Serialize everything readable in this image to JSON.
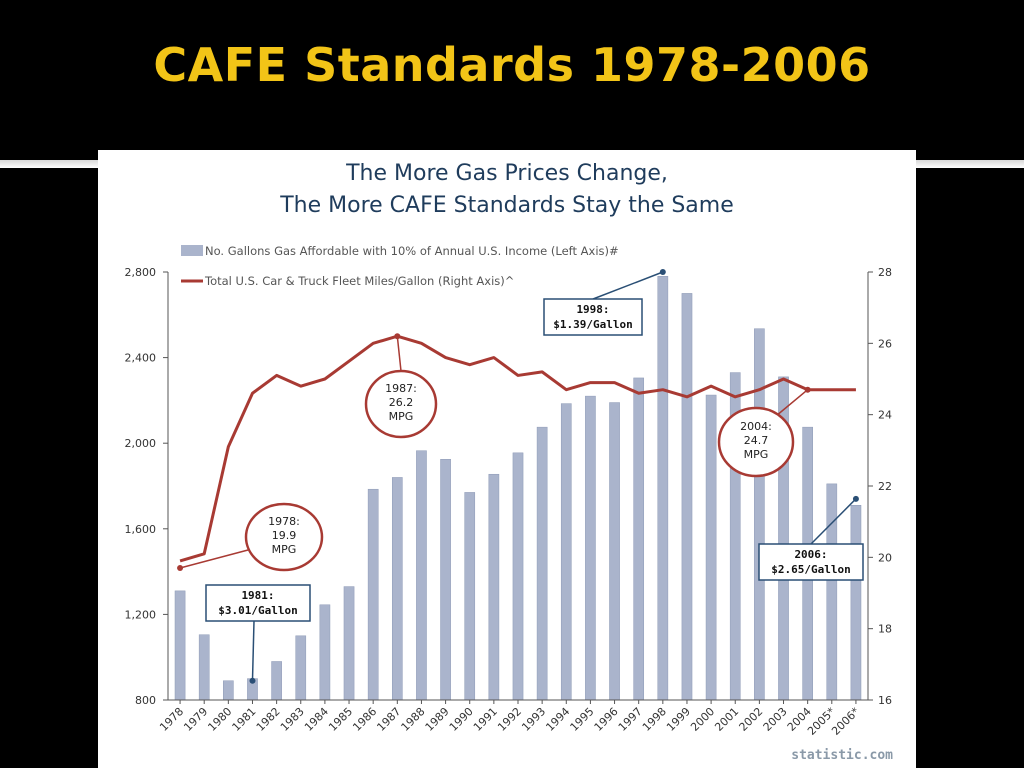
{
  "slide": {
    "title": "CAFE Standards 1978-2006"
  },
  "chart_data": {
    "type": "bar",
    "title_lines": [
      "The More Gas Prices Change,",
      "The More CAFE Standards Stay the Same"
    ],
    "categories": [
      "1978",
      "1979",
      "1980",
      "1981",
      "1982",
      "1983",
      "1984",
      "1985",
      "1986",
      "1987",
      "1988",
      "1989",
      "1990",
      "1991",
      "1992",
      "1993",
      "1994",
      "1995",
      "1996",
      "1997",
      "1998",
      "1999",
      "2000",
      "2001",
      "2002",
      "2003",
      "2004",
      "2005*",
      "2006*"
    ],
    "series": [
      {
        "name": "No. Gallons Gas Affordable with 10% of Annual U.S. Income (Left Axis)#",
        "type": "bar",
        "axis": "left",
        "values": [
          1310,
          1105,
          890,
          900,
          980,
          1100,
          1245,
          1330,
          1785,
          1840,
          1965,
          1925,
          1770,
          1855,
          1955,
          2075,
          2185,
          2220,
          2190,
          2305,
          2780,
          2700,
          2225,
          2330,
          2535,
          2310,
          2075,
          1810,
          1710
        ]
      },
      {
        "name": "Total U.S. Car & Truck Fleet Miles/Gallon (Right Axis)^",
        "type": "line",
        "axis": "right",
        "values": [
          19.9,
          20.1,
          23.1,
          24.6,
          25.1,
          24.8,
          25.0,
          25.5,
          26.0,
          26.2,
          26.0,
          25.6,
          25.4,
          25.6,
          25.1,
          25.2,
          24.7,
          24.9,
          24.9,
          24.6,
          24.7,
          24.5,
          24.8,
          24.5,
          24.7,
          25.0,
          24.7,
          24.7,
          24.7
        ]
      }
    ],
    "left_axis": {
      "ticks": [
        "2,800",
        "2,400",
        "2,000",
        "1,600",
        "1,200",
        "800"
      ],
      "ylim": [
        800,
        2800
      ]
    },
    "right_axis": {
      "ticks": [
        "28",
        "26",
        "24",
        "22",
        "20",
        "18",
        "16"
      ],
      "ylim": [
        16,
        28
      ]
    },
    "colors": {
      "bar": "#aab4cc",
      "line": "#a83a33",
      "callout_border": "#2a4f75",
      "ellipse_border": "#a83a33"
    },
    "annotations": {
      "callouts": [
        {
          "line1": "1998:",
          "line2": "$1.39/Gallon",
          "year": "1998",
          "value": 2800
        },
        {
          "line1": "1981:",
          "line2": "$3.01/Gallon",
          "year": "1981",
          "value": 890
        },
        {
          "line1": "2006:",
          "line2": "$2.65/Gallon",
          "year": "2006*",
          "value": 1740
        }
      ],
      "ellipses": [
        {
          "line1": "1978:",
          "line2": "19.9",
          "line3": "MPG",
          "year": "1978",
          "value": 19.7
        },
        {
          "line1": "1987:",
          "line2": "26.2",
          "line3": "MPG",
          "year": "1987",
          "value": 26.2
        },
        {
          "line1": "2004:",
          "line2": "24.7",
          "line3": "MPG",
          "year": "2004",
          "value": 24.7
        }
      ]
    },
    "grid": false,
    "legend_position": "top-left",
    "source": "statistic.com"
  }
}
